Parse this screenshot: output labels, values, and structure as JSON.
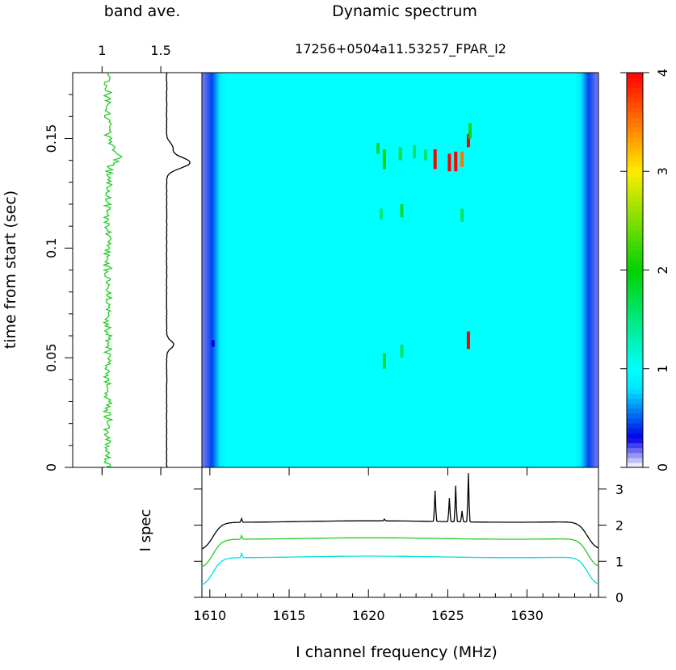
{
  "titles": {
    "band_ave": "band ave.",
    "dynamic_spectrum": "Dynamic spectrum",
    "source_id": "17256+0504a11.53257_FPAR_I2"
  },
  "labels": {
    "time_axis": "time from start (sec)",
    "spec_axis": "I spec",
    "freq_axis": "I channel frequency (MHz)"
  },
  "chart_data": [
    {
      "type": "line",
      "name": "band-average",
      "xlim": [
        0.75,
        1.85
      ],
      "ylim": [
        0,
        0.18
      ],
      "xticks": [
        1,
        1.5
      ],
      "xtick_labels": [
        "1",
        "1.5"
      ],
      "yticks": [
        0,
        0.05,
        0.1,
        0.15
      ],
      "ytick_labels": [
        "0",
        "0.05",
        "0.1",
        "0.15"
      ],
      "series": [
        {
          "color": "#000000",
          "base": 1.55,
          "bumps": [
            {
              "t": 0.139,
              "amp": 0.2,
              "width": 0.0035
            },
            {
              "t": 0.146,
              "amp": 0.05,
              "width": 0.003
            },
            {
              "t": 0.056,
              "amp": 0.06,
              "width": 0.0025
            }
          ],
          "noise": 0.002
        },
        {
          "color": "#22cc22",
          "base": 1.05,
          "bumps": [
            {
              "t": 0.142,
              "amp": 0.1,
              "width": 0.004
            }
          ],
          "noise": 0.035
        }
      ]
    },
    {
      "type": "heatmap",
      "name": "dynamic-spectrum",
      "xlim": [
        1609.5,
        1634.5
      ],
      "ylim": [
        0,
        0.18
      ],
      "background_level": 1.0,
      "edge_level": 0.15,
      "features": [
        {
          "f": 1624.2,
          "t0": 0.136,
          "t1": 0.145,
          "v": 4
        },
        {
          "f": 1625.1,
          "t0": 0.135,
          "t1": 0.143,
          "v": 4
        },
        {
          "f": 1625.5,
          "t0": 0.135,
          "t1": 0.144,
          "v": 4
        },
        {
          "f": 1625.9,
          "t0": 0.137,
          "t1": 0.144,
          "v": 3.5
        },
        {
          "f": 1626.3,
          "t0": 0.146,
          "t1": 0.152,
          "v": 4
        },
        {
          "f": 1626.3,
          "t0": 0.054,
          "t1": 0.062,
          "v": 4
        },
        {
          "f": 1621.0,
          "t0": 0.136,
          "t1": 0.145,
          "v": 2
        },
        {
          "f": 1620.6,
          "t0": 0.143,
          "t1": 0.148,
          "v": 1.8
        },
        {
          "f": 1622.0,
          "t0": 0.14,
          "t1": 0.146,
          "v": 1.7
        },
        {
          "f": 1622.9,
          "t0": 0.141,
          "t1": 0.147,
          "v": 1.6
        },
        {
          "f": 1623.6,
          "t0": 0.14,
          "t1": 0.145,
          "v": 1.6
        },
        {
          "f": 1620.8,
          "t0": 0.113,
          "t1": 0.118,
          "v": 1.5
        },
        {
          "f": 1622.1,
          "t0": 0.114,
          "t1": 0.12,
          "v": 1.8
        },
        {
          "f": 1625.9,
          "t0": 0.112,
          "t1": 0.118,
          "v": 1.6
        },
        {
          "f": 1621.0,
          "t0": 0.045,
          "t1": 0.052,
          "v": 1.8
        },
        {
          "f": 1622.1,
          "t0": 0.05,
          "t1": 0.056,
          "v": 1.6
        },
        {
          "f": 1610.2,
          "t0": 0.055,
          "t1": 0.058,
          "v": 0.3
        },
        {
          "f": 1626.4,
          "t0": 0.15,
          "t1": 0.157,
          "v": 1.9
        }
      ]
    },
    {
      "type": "line",
      "name": "integrated-spectrum",
      "xlim": [
        1609.5,
        1634.5
      ],
      "ylim": [
        0,
        3.6
      ],
      "xticks": [
        1610,
        1615,
        1620,
        1625,
        1630
      ],
      "xtick_labels": [
        "1610",
        "1615",
        "1620",
        "1625",
        "1630"
      ],
      "yticks": [
        0,
        1,
        2,
        3
      ],
      "ytick_labels": [
        "0",
        "1",
        "2",
        "3"
      ],
      "series": [
        {
          "color": "#000000",
          "level": 2.1,
          "edge_level": 1.3,
          "peaks": [
            {
              "f": 1612.0,
              "h": 0.1
            },
            {
              "f": 1621.0,
              "h": 0.05
            },
            {
              "f": 1624.2,
              "h": 0.85
            },
            {
              "f": 1625.1,
              "h": 0.65
            },
            {
              "f": 1625.5,
              "h": 1.0
            },
            {
              "f": 1625.9,
              "h": 0.3
            },
            {
              "f": 1626.3,
              "h": 1.35
            }
          ]
        },
        {
          "color": "#22cc22",
          "level": 1.63,
          "edge_level": 0.8,
          "peaks": [
            {
              "f": 1612.0,
              "h": 0.1
            }
          ]
        },
        {
          "color": "#00dddd",
          "level": 1.12,
          "edge_level": 0.3,
          "peaks": [
            {
              "f": 1612.0,
              "h": 0.12
            }
          ]
        }
      ]
    },
    {
      "type": "heatmap",
      "name": "colorbar",
      "ylim": [
        0,
        4
      ],
      "yticks": [
        0,
        1,
        2,
        3,
        4
      ],
      "ytick_labels": [
        "0",
        "1",
        "2",
        "3",
        "4"
      ]
    }
  ]
}
